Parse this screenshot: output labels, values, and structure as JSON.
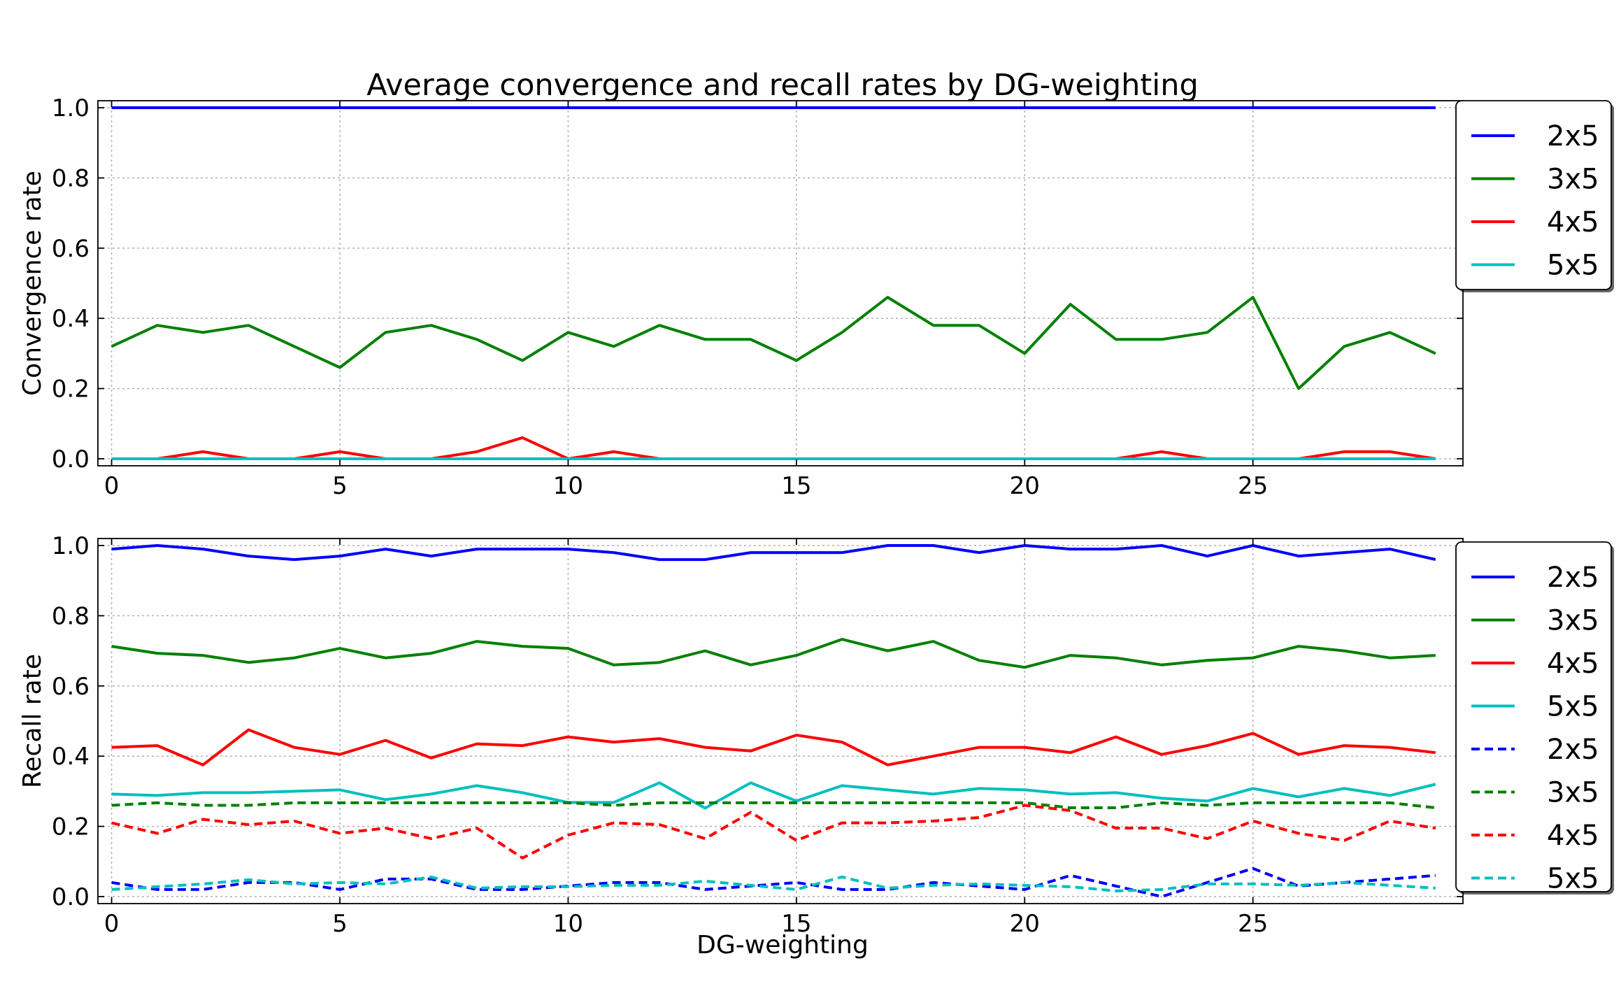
{
  "figure": {
    "title": "Average convergence and recall rates by DG-weighting",
    "xlabel": "DG-weighting"
  },
  "chart_data": [
    {
      "type": "line",
      "title": "Average convergence and recall rates by DG-weighting",
      "xlabel": "",
      "ylabel": "Convergence rate",
      "xlim": [
        -0.3,
        29.6
      ],
      "ylim": [
        -0.02,
        1.02
      ],
      "xticks": [
        0,
        5,
        10,
        15,
        20,
        25
      ],
      "xtick_labels": [
        "0",
        "5",
        "10",
        "15",
        "20",
        "25"
      ],
      "yticks": [
        0.0,
        0.2,
        0.4,
        0.6,
        0.8,
        1.0
      ],
      "ytick_labels": [
        "0.0",
        "0.2",
        "0.4",
        "0.6",
        "0.8",
        "1.0"
      ],
      "grid": true,
      "legend_position": "upper-right-outside",
      "x": [
        0,
        1,
        2,
        3,
        4,
        5,
        6,
        7,
        8,
        9,
        10,
        11,
        12,
        13,
        14,
        15,
        16,
        17,
        18,
        19,
        20,
        21,
        22,
        23,
        24,
        25,
        26,
        27,
        28,
        29
      ],
      "series": [
        {
          "name": "2x5",
          "color": "#0000ff",
          "style": "solid",
          "values": [
            1,
            1,
            1,
            1,
            1,
            1,
            1,
            1,
            1,
            1,
            1,
            1,
            1,
            1,
            1,
            1,
            1,
            1,
            1,
            1,
            1,
            1,
            1,
            1,
            1,
            1,
            1,
            1,
            1,
            1
          ]
        },
        {
          "name": "3x5",
          "color": "#008000",
          "style": "solid",
          "values": [
            0.32,
            0.38,
            0.36,
            0.38,
            0.32,
            0.26,
            0.36,
            0.38,
            0.34,
            0.28,
            0.36,
            0.32,
            0.38,
            0.34,
            0.34,
            0.28,
            0.36,
            0.46,
            0.38,
            0.38,
            0.3,
            0.44,
            0.34,
            0.34,
            0.36,
            0.46,
            0.2,
            0.32,
            0.36,
            0.3
          ]
        },
        {
          "name": "4x5",
          "color": "#ff0000",
          "style": "solid",
          "values": [
            0,
            0,
            0.02,
            0,
            0,
            0.02,
            0,
            0,
            0.02,
            0.06,
            0,
            0.02,
            0,
            0,
            0,
            0,
            0,
            0,
            0,
            0,
            0,
            0,
            0,
            0.02,
            0,
            0,
            0,
            0.02,
            0.02,
            0
          ]
        },
        {
          "name": "5x5",
          "color": "#00bfbf",
          "style": "solid",
          "values": [
            0,
            0,
            0,
            0,
            0,
            0,
            0,
            0,
            0,
            0,
            0,
            0,
            0,
            0,
            0,
            0,
            0,
            0,
            0,
            0,
            0,
            0,
            0,
            0,
            0,
            0,
            0,
            0,
            0,
            0
          ]
        }
      ]
    },
    {
      "type": "line",
      "title": "",
      "xlabel": "DG-weighting",
      "ylabel": "Recall rate",
      "xlim": [
        -0.3,
        29.6
      ],
      "ylim": [
        -0.02,
        1.02
      ],
      "xticks": [
        0,
        5,
        10,
        15,
        20,
        25
      ],
      "xtick_labels": [
        "0",
        "5",
        "10",
        "15",
        "20",
        "25"
      ],
      "yticks": [
        0.0,
        0.2,
        0.4,
        0.6,
        0.8,
        1.0
      ],
      "ytick_labels": [
        "0.0",
        "0.2",
        "0.4",
        "0.6",
        "0.8",
        "1.0"
      ],
      "grid": true,
      "legend_position": "upper-right-outside",
      "x": [
        0,
        1,
        2,
        3,
        4,
        5,
        6,
        7,
        8,
        9,
        10,
        11,
        12,
        13,
        14,
        15,
        16,
        17,
        18,
        19,
        20,
        21,
        22,
        23,
        24,
        25,
        26,
        27,
        28,
        29
      ],
      "series": [
        {
          "name": "2x5",
          "color": "#0000ff",
          "style": "solid",
          "values": [
            0.99,
            1.0,
            0.99,
            0.97,
            0.96,
            0.97,
            0.99,
            0.97,
            0.99,
            0.99,
            0.99,
            0.98,
            0.96,
            0.96,
            0.98,
            0.98,
            0.98,
            1.0,
            1.0,
            0.98,
            1.0,
            0.99,
            0.99,
            1.0,
            0.97,
            1.0,
            0.97,
            0.98,
            0.99,
            0.96
          ]
        },
        {
          "name": "3x5",
          "color": "#008000",
          "style": "solid",
          "values": [
            0.713,
            0.693,
            0.687,
            0.667,
            0.68,
            0.707,
            0.68,
            0.693,
            0.727,
            0.713,
            0.707,
            0.66,
            0.667,
            0.7,
            0.66,
            0.687,
            0.733,
            0.7,
            0.727,
            0.673,
            0.653,
            0.687,
            0.68,
            0.66,
            0.673,
            0.68,
            0.713,
            0.7,
            0.68,
            0.687
          ]
        },
        {
          "name": "4x5",
          "color": "#ff0000",
          "style": "solid",
          "values": [
            0.425,
            0.43,
            0.375,
            0.475,
            0.425,
            0.405,
            0.445,
            0.395,
            0.435,
            0.43,
            0.455,
            0.44,
            0.45,
            0.425,
            0.415,
            0.46,
            0.44,
            0.375,
            0.4,
            0.425,
            0.425,
            0.41,
            0.455,
            0.405,
            0.43,
            0.465,
            0.405,
            0.43,
            0.425,
            0.41
          ]
        },
        {
          "name": "5x5",
          "color": "#00bfbf",
          "style": "solid",
          "values": [
            0.292,
            0.288,
            0.296,
            0.296,
            0.3,
            0.304,
            0.276,
            0.292,
            0.316,
            0.296,
            0.268,
            0.268,
            0.324,
            0.252,
            0.324,
            0.272,
            0.316,
            0.304,
            0.292,
            0.308,
            0.304,
            0.292,
            0.296,
            0.28,
            0.272,
            0.308,
            0.284,
            0.308,
            0.288,
            0.32
          ]
        },
        {
          "name": "2x5",
          "color": "#0000ff",
          "style": "dashed",
          "values": [
            0.04,
            0.02,
            0.02,
            0.04,
            0.04,
            0.02,
            0.05,
            0.05,
            0.02,
            0.02,
            0.03,
            0.04,
            0.04,
            0.02,
            0.03,
            0.04,
            0.02,
            0.02,
            0.04,
            0.03,
            0.02,
            0.06,
            0.03,
            0.0,
            0.04,
            0.08,
            0.03,
            0.04,
            0.05,
            0.06
          ]
        },
        {
          "name": "3x5",
          "color": "#008000",
          "style": "dashed",
          "values": [
            0.26,
            0.267,
            0.26,
            0.26,
            0.267,
            0.267,
            0.267,
            0.267,
            0.267,
            0.267,
            0.267,
            0.26,
            0.267,
            0.267,
            0.267,
            0.267,
            0.267,
            0.267,
            0.267,
            0.267,
            0.267,
            0.253,
            0.253,
            0.267,
            0.26,
            0.267,
            0.267,
            0.267,
            0.267,
            0.253
          ]
        },
        {
          "name": "4x5",
          "color": "#ff0000",
          "style": "dashed",
          "values": [
            0.21,
            0.18,
            0.22,
            0.205,
            0.215,
            0.18,
            0.195,
            0.165,
            0.195,
            0.11,
            0.175,
            0.21,
            0.205,
            0.165,
            0.24,
            0.16,
            0.21,
            0.21,
            0.215,
            0.225,
            0.26,
            0.245,
            0.195,
            0.195,
            0.165,
            0.215,
            0.18,
            0.16,
            0.215,
            0.195
          ]
        },
        {
          "name": "5x5",
          "color": "#00bfbf",
          "style": "dashed",
          "values": [
            0.02,
            0.028,
            0.036,
            0.048,
            0.036,
            0.04,
            0.036,
            0.056,
            0.024,
            0.028,
            0.028,
            0.032,
            0.032,
            0.044,
            0.032,
            0.02,
            0.056,
            0.024,
            0.032,
            0.036,
            0.032,
            0.028,
            0.016,
            0.02,
            0.036,
            0.036,
            0.032,
            0.04,
            0.032,
            0.024
          ]
        }
      ]
    }
  ]
}
